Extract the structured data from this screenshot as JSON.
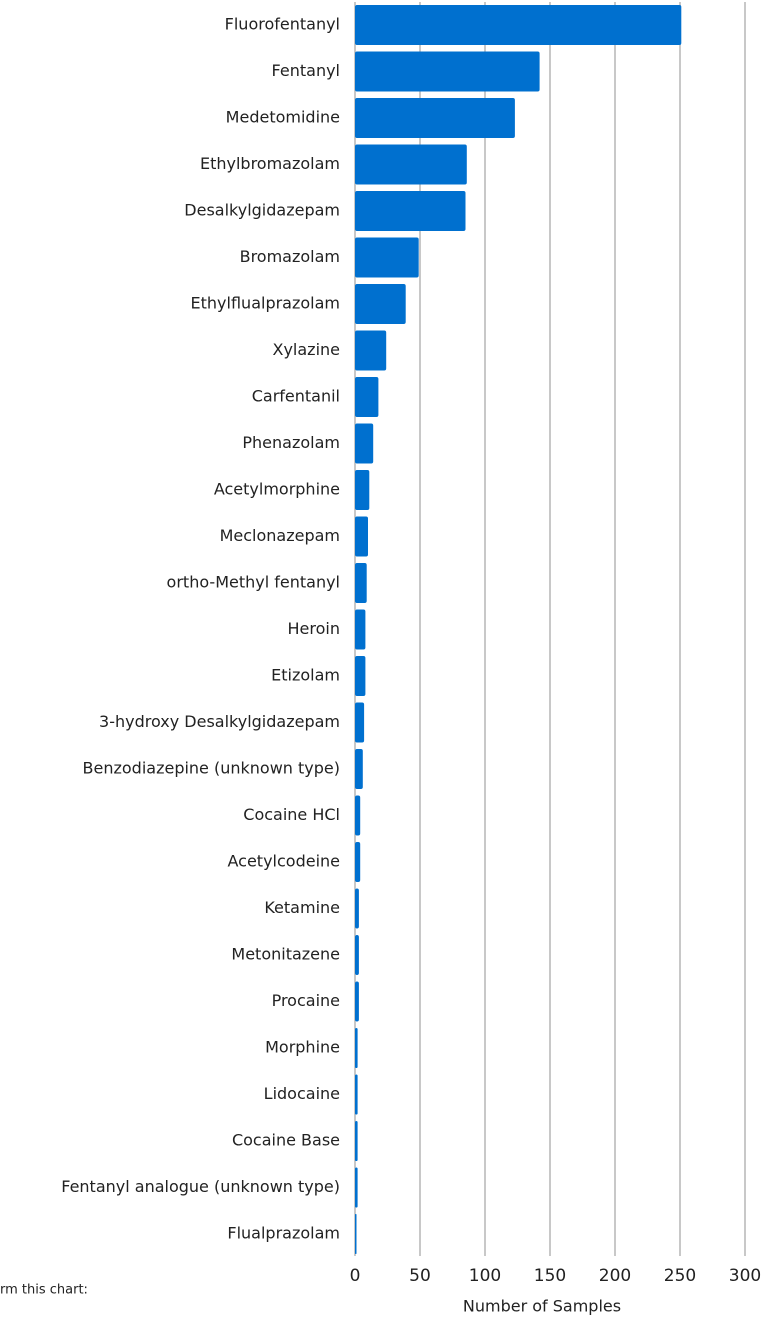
{
  "chart_data": {
    "type": "bar",
    "orientation": "horizontal",
    "xlabel": "Number of Samples",
    "note": "rm this chart:",
    "categories": [
      "Fluorofentanyl",
      "Fentanyl",
      "Medetomidine",
      "Ethylbromazolam",
      "Desalkylgidazepam",
      "Bromazolam",
      "Ethylflualprazolam",
      "Xylazine",
      "Carfentanil",
      "Phenazolam",
      "Acetylmorphine",
      "Meclonazepam",
      "ortho-Methyl fentanyl",
      "Heroin",
      "Etizolam",
      "3-hydroxy Desalkylgidazepam",
      "Benzodiazepine (unknown type)",
      "Cocaine HCl",
      "Acetylcodeine",
      "Ketamine",
      "Metonitazene",
      "Procaine",
      "Morphine",
      "Lidocaine",
      "Cocaine Base",
      "Fentanyl analogue (unknown type)",
      "Flualprazolam"
    ],
    "values": [
      251,
      142,
      123,
      86,
      85,
      49,
      39,
      24,
      18,
      14,
      11,
      10,
      9,
      8,
      8,
      7,
      6,
      4,
      4,
      3,
      3,
      3,
      2,
      2,
      2,
      2,
      1
    ],
    "color": "#0070cf",
    "xlim": [
      0,
      300
    ],
    "xticks": [
      0,
      50,
      100,
      150,
      200,
      250,
      300
    ],
    "grid": true
  }
}
